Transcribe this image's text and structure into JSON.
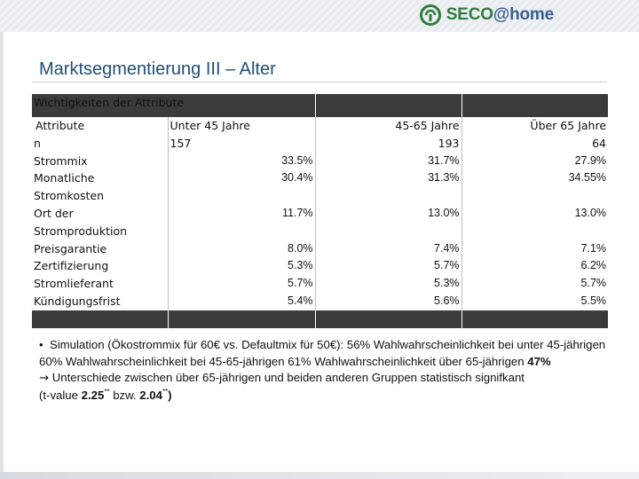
{
  "logo": {
    "name": "SECO",
    "suffix": "@home"
  },
  "title": "Marktsegmentierung III – Alter",
  "table": {
    "section_title": "Wichtigkeiten der Attribute",
    "columns": [
      "Attribute",
      "Unter 45 Jahre",
      "45-65 Jahre",
      "Über 65 Jahre"
    ],
    "n_label": "n",
    "n_values": [
      "157",
      "193",
      "64"
    ],
    "rows": [
      {
        "label": "Strommix",
        "values": [
          "33.5%",
          "31.7%",
          "27.9%"
        ]
      },
      {
        "label": "Monatliche Stromkosten",
        "values": [
          "30.4%",
          "31.3%",
          "34.55%"
        ]
      },
      {
        "label": "Ort der Stromproduktion",
        "values": [
          "11.7%",
          "13.0%",
          "13.0%"
        ]
      },
      {
        "label": "Preisgarantie",
        "values": [
          "8.0%",
          "7.4%",
          "7.1%"
        ]
      },
      {
        "label": "Zertifizierung",
        "values": [
          "5.3%",
          "5.7%",
          "6.2%"
        ]
      },
      {
        "label": "Stromlieferant",
        "values": [
          "5.7%",
          "5.3%",
          "5.7%"
        ]
      },
      {
        "label": "Kündigungsfrist",
        "values": [
          "5.4%",
          "5.6%",
          "5.5%"
        ]
      }
    ]
  },
  "notes": {
    "bullet": "•",
    "line1": "Simulation (Ökostrommix für 60€ vs. Defaultmix für 50€): 56% Wahlwahrscheinlichkeit bei unter 45-jährigen 60% Wahlwahrscheinlichkeit bei 45-65-jährigen 61% Wahlwahrscheinlichkeit über 65-jährigen ",
    "line1_bold": "47%",
    "arrow": "→",
    "line2": " Unterschiede zwischen über 65-jährigen und beiden anderen Gruppen statistisch signifkant",
    "line3_a": "(t-value ",
    "tval1": "2.25",
    "sig1": "**",
    "line3_b": " bzw. ",
    "tval2": "2.04",
    "sig2": "**",
    "line3_c": ")"
  }
}
